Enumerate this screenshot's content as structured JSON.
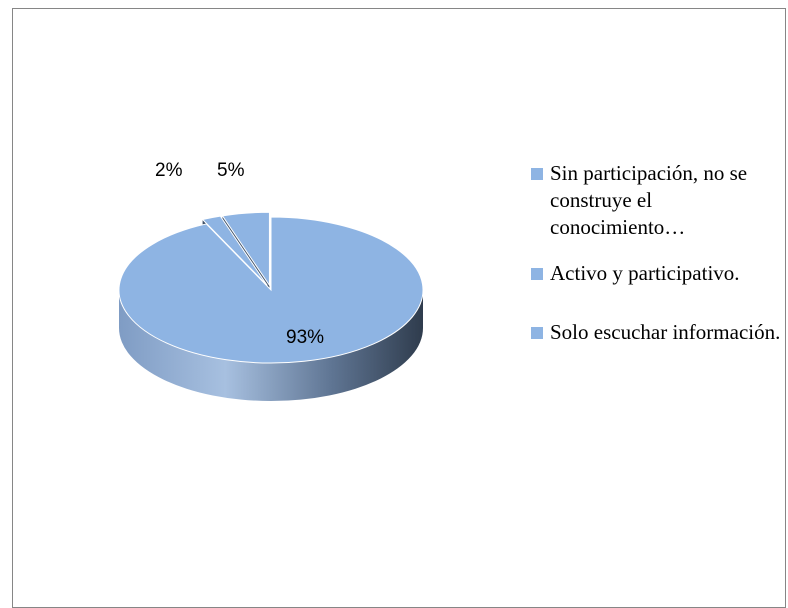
{
  "chart_data": {
    "type": "pie",
    "categories": [
      "Sin participación, no se construye el conocimiento…",
      "Activo y participativo.",
      "Solo escuchar información."
    ],
    "values": [
      93,
      2,
      5
    ],
    "labels": [
      "93%",
      "2%",
      "5%"
    ],
    "legend_position": "right",
    "three_d": true,
    "colors": {
      "top": "#8eb4e3",
      "side_dark": "#3a4a5c",
      "side_light": "#a9c4e4"
    }
  },
  "legend": {
    "items": [
      "Sin participación, no se construye el conocimiento…",
      "Activo y participativo.",
      "Solo escuchar información."
    ]
  }
}
